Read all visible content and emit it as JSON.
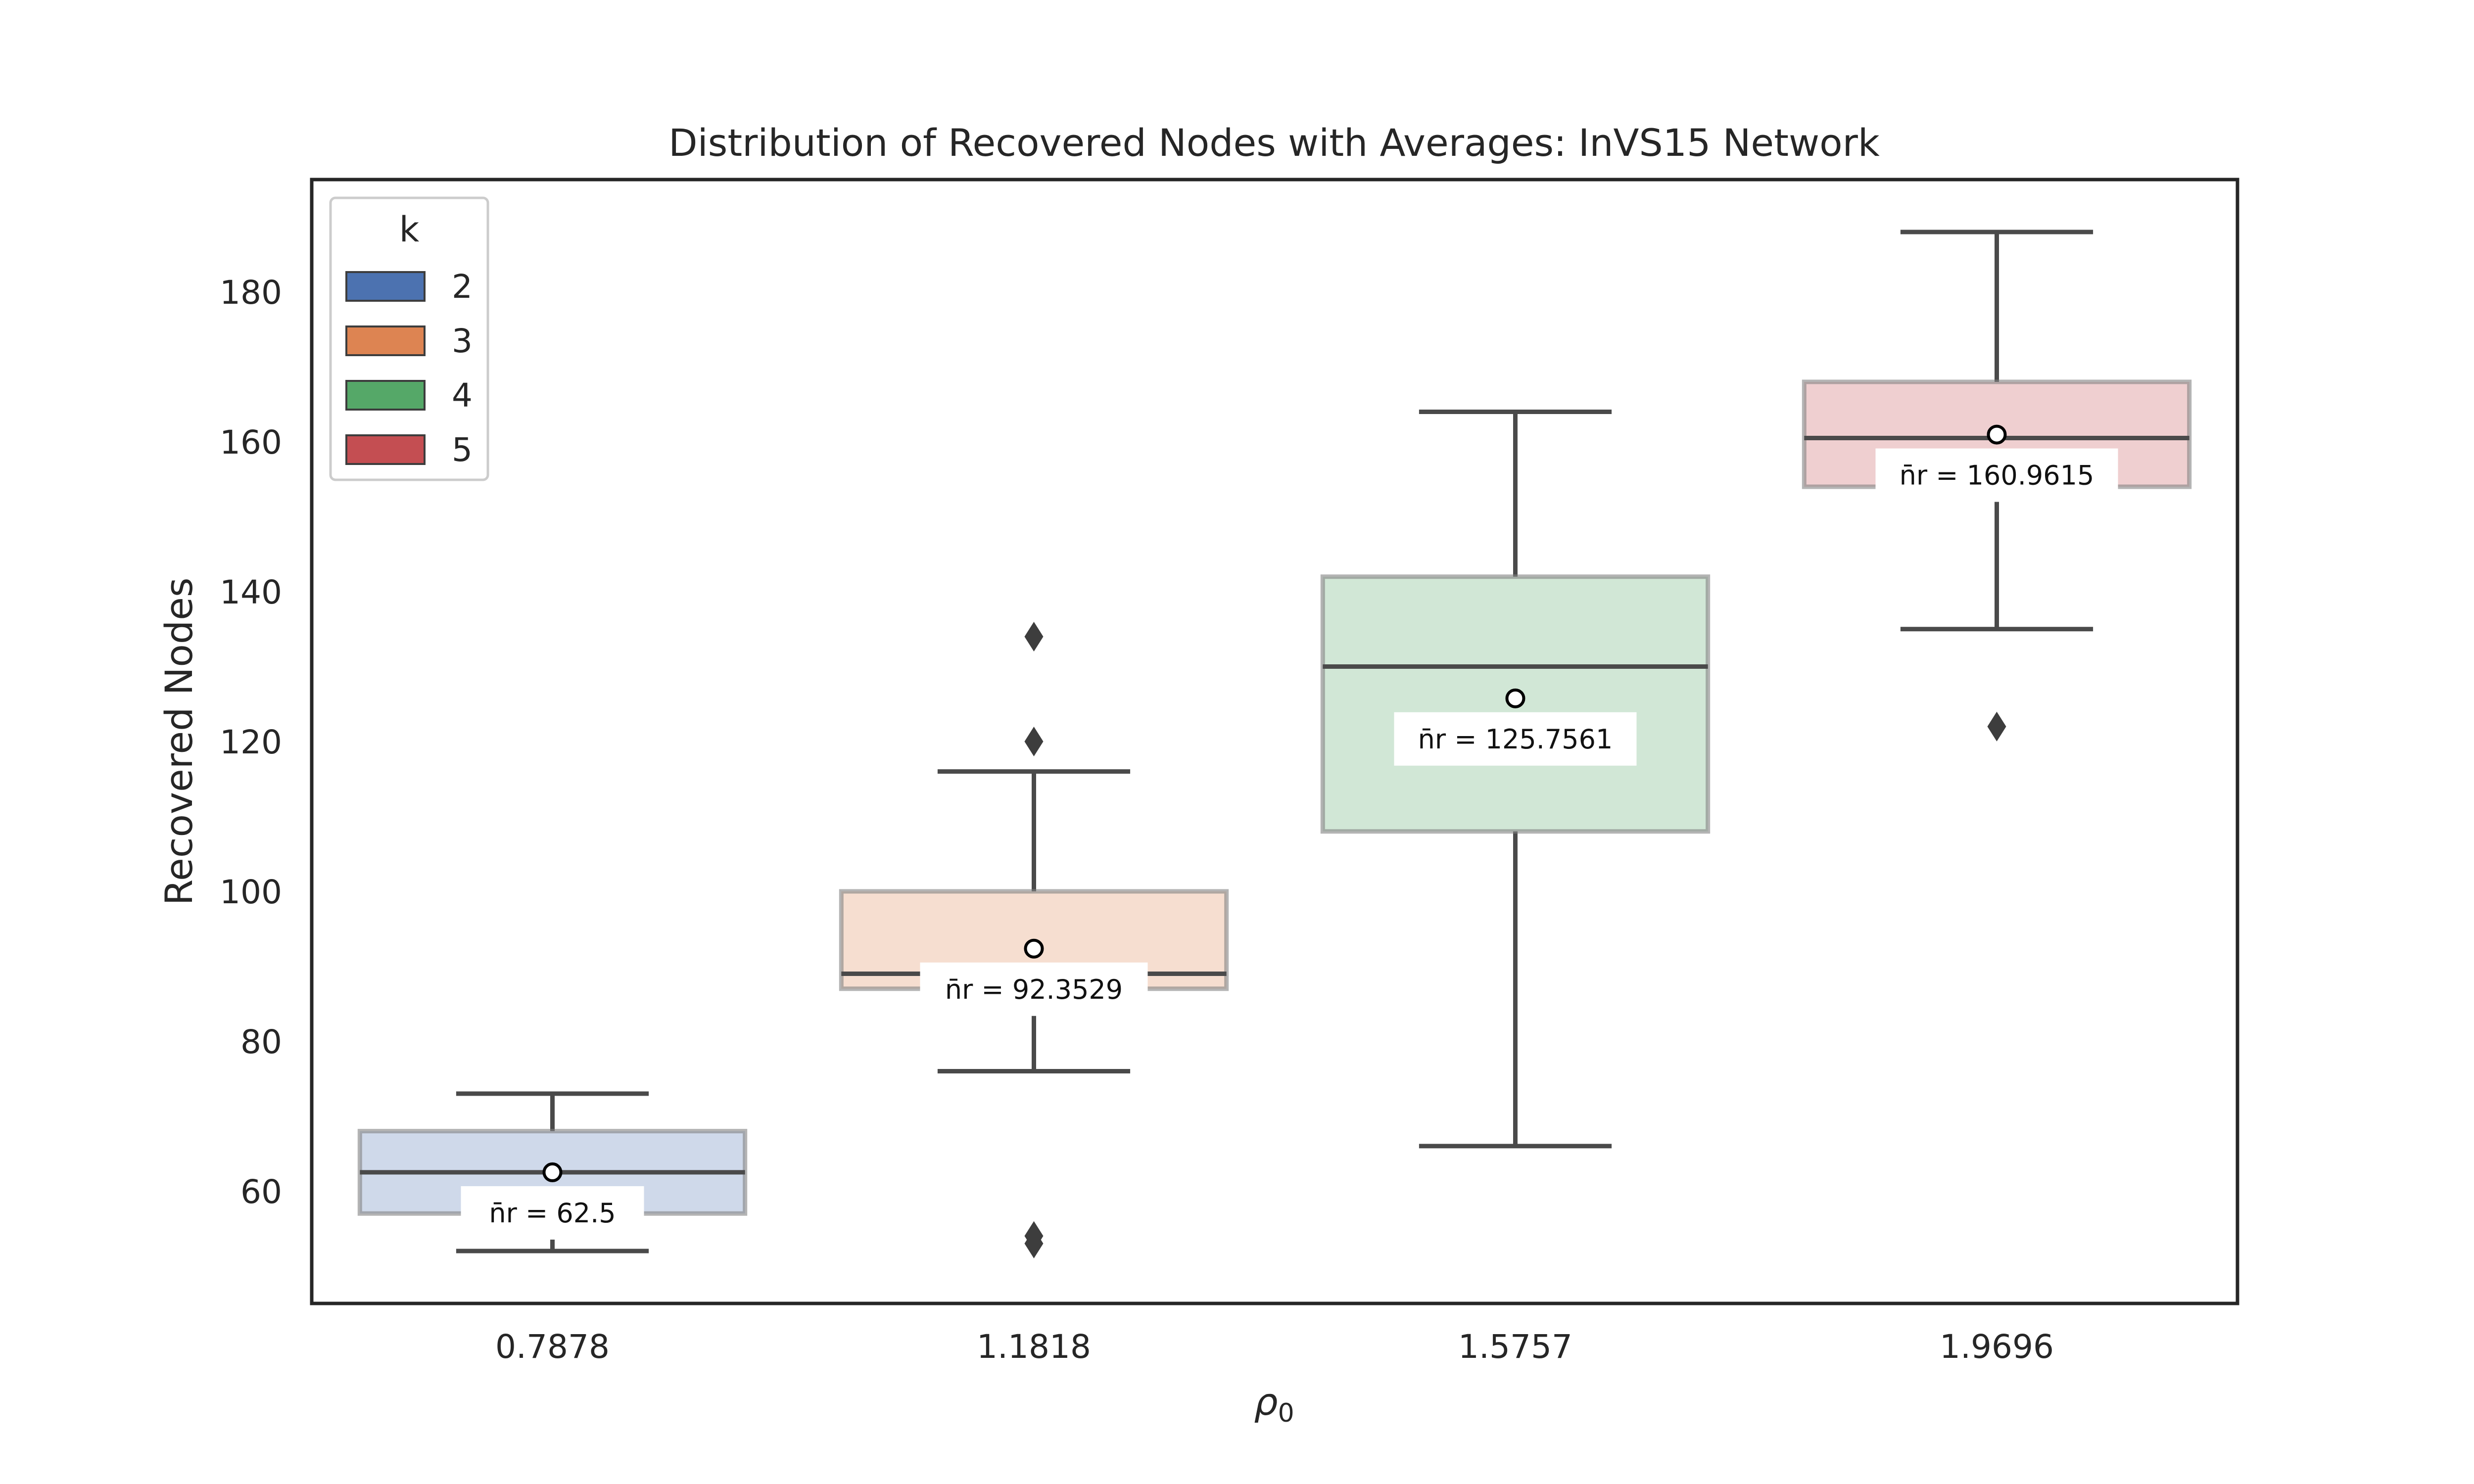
{
  "chart_data": {
    "type": "box",
    "title": "Distribution of Recovered Nodes with Averages: InVS15 Network",
    "xlabel": "ρ",
    "xlabel_subscript": "0",
    "ylabel": "Recovered Nodes",
    "ylim": [
      45,
      195
    ],
    "yticks": [
      60,
      80,
      100,
      120,
      140,
      160,
      180
    ],
    "grid": false,
    "legend": {
      "title": "k",
      "placement": "top-left",
      "entries": [
        {
          "label": "2",
          "color": "#4c72b0"
        },
        {
          "label": "3",
          "color": "#dd8452"
        },
        {
          "label": "4",
          "color": "#55a868"
        },
        {
          "label": "5",
          "color": "#c44e52"
        }
      ]
    },
    "categories": [
      "0.7878",
      "1.1818",
      "1.5757",
      "1.9696"
    ],
    "boxes": [
      {
        "k": "2",
        "whisker_low": 52,
        "q1": 57,
        "median": 62.5,
        "q3": 68,
        "whisker_high": 73,
        "mean": 62.5,
        "outliers": [],
        "mean_label": "n̄r = 62.5"
      },
      {
        "k": "3",
        "whisker_low": 76,
        "q1": 87,
        "median": 89,
        "q3": 100,
        "whisker_high": 116,
        "mean": 92.3529,
        "outliers": [
          134,
          120,
          54,
          53
        ],
        "mean_label": "n̄r = 92.3529"
      },
      {
        "k": "4",
        "whisker_low": 66,
        "q1": 108,
        "median": 130,
        "q3": 142,
        "whisker_high": 164,
        "mean": 125.7561,
        "outliers": [],
        "mean_label": "n̄r = 125.7561"
      },
      {
        "k": "5",
        "whisker_low": 135,
        "q1": 154,
        "median": 160.5,
        "q3": 168,
        "whisker_high": 188,
        "mean": 160.9615,
        "outliers": [
          122
        ],
        "mean_label": "n̄r = 160.9615"
      }
    ]
  }
}
